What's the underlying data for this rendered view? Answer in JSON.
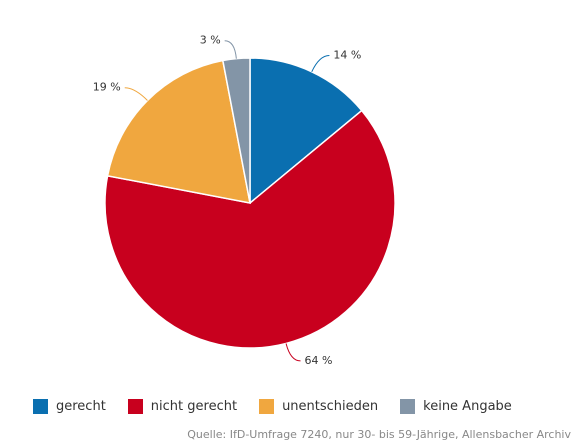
{
  "chart_data": {
    "type": "pie",
    "categories": [
      "gerecht",
      "nicht gerecht",
      "unentschieden",
      "keine Angabe"
    ],
    "values": [
      14,
      64,
      19,
      3
    ],
    "value_labels": [
      "14 %",
      "64 %",
      "19 %",
      "3 %"
    ],
    "colors": [
      "#0a6fb0",
      "#c8001e",
      "#f0a73f",
      "#8395a7"
    ],
    "source": "Quelle: IfD-Umfrage 7240, nur 30- bis 59-Jährige, Allensbacher Archiv"
  }
}
